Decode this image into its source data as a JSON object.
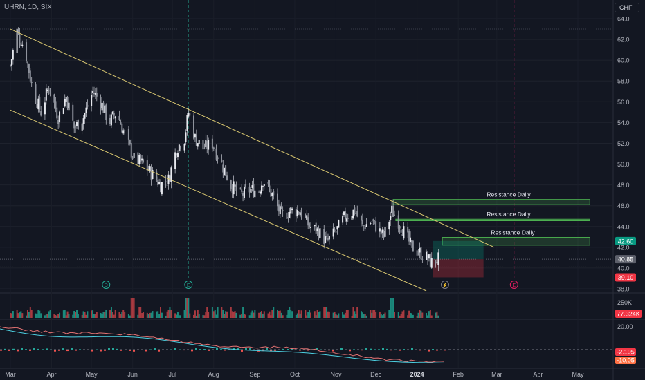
{
  "header": {
    "symbol": "UHRN, 1D, SIX",
    "currency": "CHF"
  },
  "chart_data": {
    "type": "candlestick",
    "title": "UHRN, 1D, SIX",
    "currency": "CHF",
    "grid": true,
    "ylim": [
      37.5,
      64.5
    ],
    "y_ticks": [
      "64.0",
      "62.0",
      "60.0",
      "58.0",
      "56.0",
      "54.0",
      "52.0",
      "50.0",
      "48.0",
      "46.0",
      "44.0",
      "42.0",
      "40.0",
      "38.0"
    ],
    "x_ticks": [
      "Mar",
      "Apr",
      "May",
      "Jun",
      "Jul",
      "Aug",
      "Sep",
      "Oct",
      "Nov",
      "Dec",
      "2024",
      "Feb",
      "Mar",
      "Apr",
      "May"
    ],
    "close_path": [
      {
        "date": "2023-03-01",
        "value": 59.5
      },
      {
        "date": "2023-03-06",
        "value": 62.8
      },
      {
        "date": "2023-03-12",
        "value": 61.0
      },
      {
        "date": "2023-03-18",
        "value": 57.0
      },
      {
        "date": "2023-03-24",
        "value": 55.0
      },
      {
        "date": "2023-03-30",
        "value": 57.5
      },
      {
        "date": "2023-04-06",
        "value": 54.5
      },
      {
        "date": "2023-04-12",
        "value": 56.5
      },
      {
        "date": "2023-04-18",
        "value": 53.5
      },
      {
        "date": "2023-04-25",
        "value": 54.5
      },
      {
        "date": "2023-05-02",
        "value": 57.0
      },
      {
        "date": "2023-05-08",
        "value": 56.0
      },
      {
        "date": "2023-05-14",
        "value": 54.0
      },
      {
        "date": "2023-05-20",
        "value": 55.0
      },
      {
        "date": "2023-05-27",
        "value": 52.5
      },
      {
        "date": "2023-06-02",
        "value": 50.5
      },
      {
        "date": "2023-06-09",
        "value": 50.0
      },
      {
        "date": "2023-06-16",
        "value": 49.0
      },
      {
        "date": "2023-06-22",
        "value": 48.0
      },
      {
        "date": "2023-06-28",
        "value": 48.5
      },
      {
        "date": "2023-07-04",
        "value": 51.5
      },
      {
        "date": "2023-07-10",
        "value": 52.5
      },
      {
        "date": "2023-07-13",
        "value": 55.0
      },
      {
        "date": "2023-07-18",
        "value": 52.5
      },
      {
        "date": "2023-07-24",
        "value": 51.5
      },
      {
        "date": "2023-07-31",
        "value": 52.0
      },
      {
        "date": "2023-08-07",
        "value": 50.0
      },
      {
        "date": "2023-08-14",
        "value": 48.0
      },
      {
        "date": "2023-08-21",
        "value": 47.0
      },
      {
        "date": "2023-08-28",
        "value": 47.5
      },
      {
        "date": "2023-09-04",
        "value": 47.5
      },
      {
        "date": "2023-09-07",
        "value": 48.5
      },
      {
        "date": "2023-09-14",
        "value": 47.0
      },
      {
        "date": "2023-09-21",
        "value": 45.0
      },
      {
        "date": "2023-09-28",
        "value": 45.5
      },
      {
        "date": "2023-10-05",
        "value": 45.5
      },
      {
        "date": "2023-10-12",
        "value": 44.0
      },
      {
        "date": "2023-10-19",
        "value": 43.5
      },
      {
        "date": "2023-10-25",
        "value": 42.5
      },
      {
        "date": "2023-11-01",
        "value": 43.5
      },
      {
        "date": "2023-11-08",
        "value": 45.0
      },
      {
        "date": "2023-11-15",
        "value": 45.5
      },
      {
        "date": "2023-11-21",
        "value": 44.0
      },
      {
        "date": "2023-11-28",
        "value": 44.5
      },
      {
        "date": "2023-12-04",
        "value": 43.5
      },
      {
        "date": "2023-12-07",
        "value": 43.0
      },
      {
        "date": "2023-12-13",
        "value": 45.5
      },
      {
        "date": "2023-12-18",
        "value": 44.5
      },
      {
        "date": "2023-12-22",
        "value": 43.5
      },
      {
        "date": "2023-12-28",
        "value": 42.0
      },
      {
        "date": "2024-01-03",
        "value": 41.5
      },
      {
        "date": "2024-01-08",
        "value": 41.0
      },
      {
        "date": "2024-01-12",
        "value": 40.5
      },
      {
        "date": "2024-01-17",
        "value": 40.85
      }
    ],
    "channel_lines": [
      {
        "name": "upper",
        "start": {
          "date": "2023-03-01",
          "value": 63.0
        },
        "end": {
          "date": "2024-02-28",
          "value": 42.0
        }
      },
      {
        "name": "lower",
        "start": {
          "date": "2023-03-01",
          "value": 55.2
        },
        "end": {
          "date": "2024-01-08",
          "value": 37.8
        }
      }
    ],
    "resistance_zones": [
      {
        "label": "Resistance Daily",
        "date_from": "2023-12-14",
        "date_to": "2024-05-10",
        "low": 46.1,
        "high": 46.6
      },
      {
        "label": "Resistance Daily",
        "date_from": "2023-12-16",
        "date_to": "2024-05-10",
        "low": 44.55,
        "high": 44.7
      },
      {
        "label": "Resistance Daily",
        "date_from": "2024-01-20",
        "date_to": "2024-05-10",
        "low": 42.2,
        "high": 42.95
      }
    ],
    "position": {
      "entry": 40.85,
      "target": 42.6,
      "stop": 39.1
    },
    "price_labels": [
      {
        "text": "42.60",
        "value": 42.6,
        "color": "#089981"
      },
      {
        "text": "40.85",
        "value": 40.85,
        "color": "#5d606b"
      },
      {
        "text": "39.10",
        "value": 39.1,
        "color": "#f23645"
      }
    ],
    "events": [
      {
        "symbol": "D",
        "date": "2023-05-12",
        "color": "#22ab94"
      },
      {
        "symbol": "E",
        "date": "2023-07-13",
        "color": "#22ab94"
      },
      {
        "symbol": "⚡",
        "date": "2024-01-22",
        "color": "#787b86"
      },
      {
        "symbol": "E",
        "date": "2024-03-14",
        "color": "#e91e63"
      }
    ],
    "volume": {
      "axis_label": "250K",
      "last_label": "77.324K",
      "spike_dates": [
        "2023-06-01",
        "2023-07-12",
        "2023-12-13"
      ]
    },
    "oscillator": {
      "axis_label": "20.00",
      "labels": [
        "-2.195",
        "-10.05"
      ]
    }
  }
}
